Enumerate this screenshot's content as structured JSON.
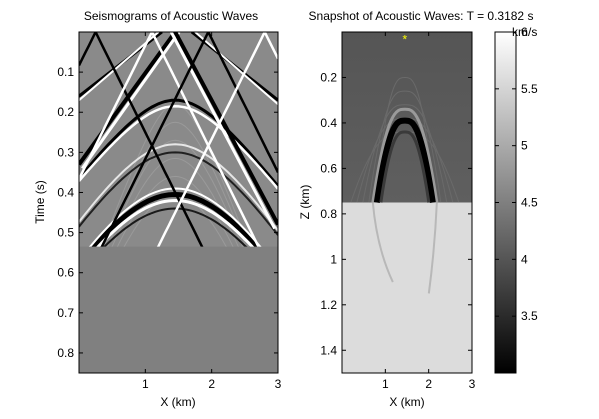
{
  "chart_data": [
    {
      "type": "heatmap",
      "title": "Seismograms of Acoustic Waves",
      "xlabel": "X (km)",
      "ylabel": "Time (s)",
      "xlim": [
        0,
        3
      ],
      "ylim": [
        0.85,
        0
      ],
      "x_ticks": [
        1,
        2,
        3
      ],
      "x_tick_labels": [
        "1",
        "2",
        "3"
      ],
      "y_ticks": [
        0.1,
        0.2,
        0.3,
        0.4,
        0.5,
        0.6,
        0.7,
        0.8
      ],
      "y_tick_labels": [
        "0.1",
        "0.2",
        "0.3",
        "0.4",
        "0.5",
        "0.6",
        "0.7",
        "0.8"
      ],
      "recorded_until_time": 0.535,
      "colormap": "gray"
    },
    {
      "type": "heatmap",
      "title": "Snapshot of Acoustic Waves: T = 0.3182 s",
      "xlabel": "X (km)",
      "ylabel": "Z (km)",
      "xlim": [
        0,
        3
      ],
      "ylim": [
        1.5,
        0
      ],
      "x_ticks": [
        1,
        2,
        3
      ],
      "x_tick_labels": [
        "1",
        "2",
        "3"
      ],
      "y_ticks": [
        0.2,
        0.4,
        0.6,
        0.8,
        1,
        1.2,
        1.4
      ],
      "y_tick_labels": [
        "0.2",
        "0.4",
        "0.6",
        "0.8",
        "1",
        "1.2",
        "1.4"
      ],
      "interface_depth_km": 0.75,
      "source": {
        "x_km": 1.45,
        "z_km": 0.01,
        "color": "#ffff00"
      },
      "colormap": "gray"
    },
    {
      "type": "colorbar",
      "unit_label": "km/s",
      "clim": [
        3,
        6
      ],
      "ticks": [
        3.5,
        4,
        4.5,
        5,
        5.5,
        6
      ],
      "tick_labels": [
        "3.5",
        "4",
        "4.5",
        "5",
        "5.5",
        "6"
      ],
      "colormap": "gray"
    }
  ]
}
